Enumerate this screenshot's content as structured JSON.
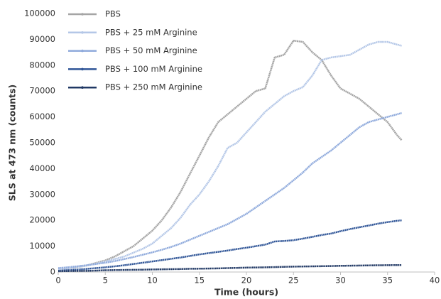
{
  "chart_data": {
    "type": "line",
    "xlabel": "Time (hours)",
    "ylabel": "SLS at 473 nm (counts)",
    "x": [
      0,
      1,
      2,
      3,
      4,
      5,
      6,
      7,
      8,
      9,
      10,
      11,
      12,
      13,
      14,
      15,
      16,
      17,
      18,
      19,
      20,
      21,
      22,
      23,
      24,
      25,
      26,
      27,
      28,
      29,
      30,
      31,
      32,
      33,
      34,
      35,
      36,
      36.5
    ],
    "xlim": [
      0,
      40
    ],
    "xticks": [
      0,
      5,
      10,
      15,
      20,
      25,
      30,
      35,
      40
    ],
    "ylim": [
      0,
      100000
    ],
    "yticks": [
      0,
      10000,
      20000,
      30000,
      40000,
      50000,
      60000,
      70000,
      80000,
      90000,
      100000
    ],
    "grid": false,
    "legend": "upper-left",
    "series": [
      {
        "name": "PBS",
        "color": "#a5a5a5",
        "values": [
          1000,
          1300,
          1800,
          2500,
          3500,
          4500,
          6000,
          8000,
          10000,
          13000,
          16000,
          20000,
          25000,
          31000,
          38000,
          45000,
          52000,
          58000,
          61000,
          64000,
          67000,
          70000,
          71000,
          83000,
          84000,
          89500,
          89000,
          85000,
          82000,
          76000,
          71000,
          69000,
          67000,
          64000,
          61000,
          58000,
          53000,
          51000
        ]
      },
      {
        "name": "PBS + 25 mM Arginine",
        "color": "#b4c7e7",
        "values": [
          1000,
          1400,
          1900,
          2500,
          3200,
          4000,
          5000,
          6000,
          7500,
          9000,
          11000,
          14000,
          17000,
          21000,
          26000,
          30000,
          35000,
          41000,
          48000,
          50000,
          54000,
          58000,
          62000,
          65000,
          68000,
          70000,
          71500,
          76000,
          82000,
          83000,
          83500,
          84000,
          86000,
          88000,
          89000,
          89000,
          88000,
          87500
        ]
      },
      {
        "name": "PBS + 50 mM Arginine",
        "color": "#8faadc",
        "values": [
          1500,
          1800,
          2200,
          2600,
          3100,
          3600,
          4200,
          5000,
          5800,
          6700,
          7600,
          8600,
          9700,
          11000,
          12500,
          14000,
          15500,
          17000,
          18500,
          20500,
          22500,
          25000,
          27500,
          30000,
          32500,
          35500,
          38500,
          42000,
          44500,
          47000,
          50000,
          53000,
          56000,
          58000,
          59000,
          60000,
          61000,
          61500
        ]
      },
      {
        "name": "PBS + 100 mM Arginine",
        "color": "#2f5597",
        "values": [
          500,
          700,
          900,
          1200,
          1500,
          1800,
          2200,
          2600,
          3100,
          3600,
          4100,
          4600,
          5100,
          5600,
          6200,
          6800,
          7300,
          7800,
          8300,
          8900,
          9400,
          10000,
          10600,
          11800,
          12000,
          12300,
          12900,
          13600,
          14300,
          14900,
          15800,
          16600,
          17300,
          18000,
          18700,
          19300,
          19800,
          20000
        ]
      },
      {
        "name": "PBS + 250 mM Arginine",
        "color": "#203864",
        "values": [
          300,
          350,
          400,
          450,
          550,
          700,
          750,
          800,
          850,
          900,
          1000,
          1050,
          1100,
          1150,
          1250,
          1300,
          1350,
          1400,
          1500,
          1600,
          1700,
          1750,
          1800,
          1900,
          2000,
          2100,
          2150,
          2200,
          2250,
          2300,
          2400,
          2450,
          2500,
          2550,
          2600,
          2650,
          2700,
          2700
        ]
      }
    ]
  }
}
